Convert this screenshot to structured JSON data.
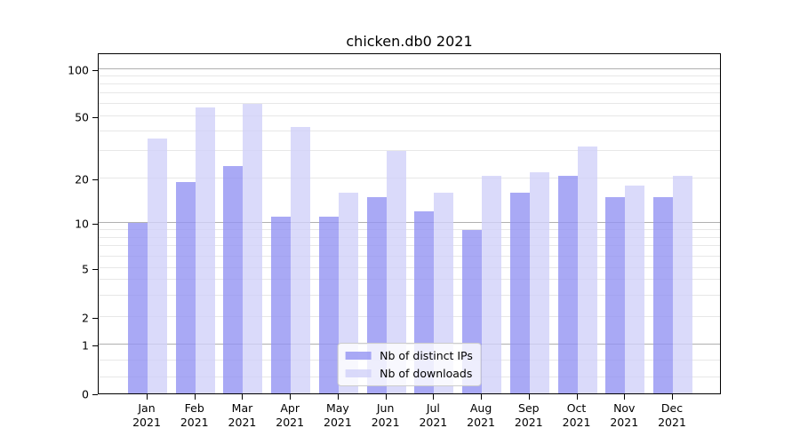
{
  "title": "chicken.db0 2021",
  "chart_data": {
    "type": "bar",
    "title": "chicken.db0 2021",
    "categories": [
      "Jan 2021",
      "Feb 2021",
      "Mar 2021",
      "Apr 2021",
      "May 2021",
      "Jun 2021",
      "Jul 2021",
      "Aug 2021",
      "Sep 2021",
      "Oct 2021",
      "Nov 2021",
      "Dec 2021"
    ],
    "series": [
      {
        "name": "Nb of distinct IPs",
        "color": "#9494f2",
        "values": [
          10,
          19,
          24,
          11,
          11,
          15,
          12,
          9,
          16,
          21,
          15,
          15
        ]
      },
      {
        "name": "Nb of downloads",
        "color": "#d1d1f9",
        "values": [
          36,
          57,
          60,
          43,
          16,
          30,
          16,
          21,
          22,
          32,
          18,
          21
        ]
      }
    ],
    "ylabel": "",
    "xlabel": "",
    "yscale": "symlog",
    "y_ticks": [
      0,
      1,
      2,
      5,
      10,
      20,
      50,
      100
    ],
    "ylim": [
      0,
      127
    ],
    "grid": "horizontal",
    "legend_position": "lower center"
  }
}
